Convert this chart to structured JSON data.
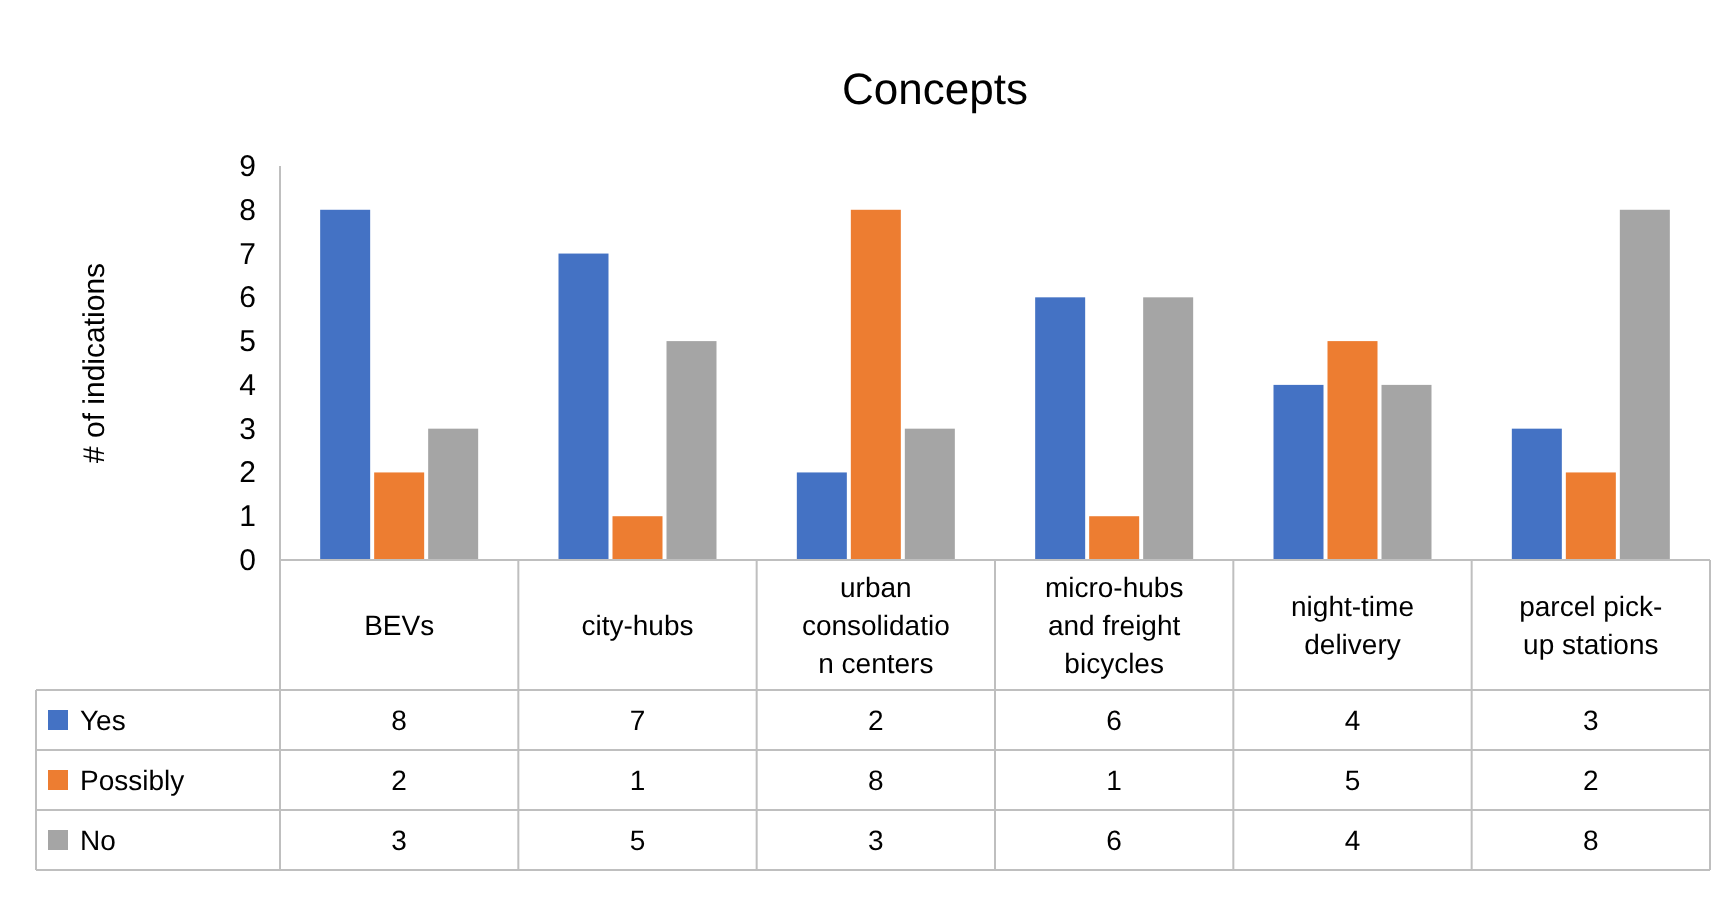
{
  "chart_data": {
    "type": "bar",
    "title": "Concepts",
    "ylabel": "# of indications",
    "categories": [
      "BEVs",
      "city-hubs",
      "urban consolidation centers",
      "micro-hubs and freight bicycles",
      "night-time delivery",
      "parcel pick-up stations"
    ],
    "series": [
      {
        "name": "Yes",
        "color": "#4472c4",
        "values": [
          8,
          7,
          2,
          6,
          4,
          3
        ]
      },
      {
        "name": "Possibly",
        "color": "#ed7d31",
        "values": [
          2,
          1,
          8,
          1,
          5,
          2
        ]
      },
      {
        "name": "No",
        "color": "#a5a5a5",
        "values": [
          3,
          5,
          3,
          6,
          4,
          8
        ]
      }
    ],
    "ylim": [
      0,
      9
    ],
    "yticks": [
      0,
      1,
      2,
      3,
      4,
      5,
      6,
      7,
      8,
      9
    ],
    "data_labels": true,
    "legend": "bottom"
  }
}
